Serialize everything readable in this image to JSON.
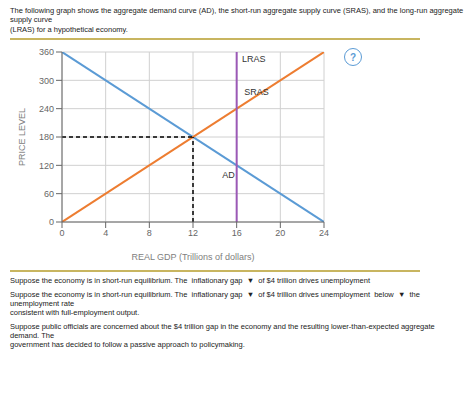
{
  "chart_data": {
    "type": "line",
    "title": "The following graph shows the aggregate demand curve (AD), the short-run aggregate supply curve (SRAS), and the long-run aggregate supply curve\n(LRAS) for a hypothetical economy.",
    "caption": [
      "Suppose the economy is in short-run equilibrium. The  inflationary gap  ▼  of $4 trillion drives unemployment",
      "Suppose the economy is in short-run equilibrium. The  inflationary gap  ▼  of $4 trillion drives unemployment  below  ▼  the unemployment rate\nconsistent with full-employment output.",
      "Suppose public officials are concerned about the $4 trillion gap in the economy and the resulting lower-than-expected aggregate demand. The\ngovernment has decided to follow a passive approach to policymaking."
    ],
    "badge": "?",
    "xlabel": "REAL GDP (Trillions of dollars)",
    "ylabel": "PRICE LEVEL",
    "xlim": [
      0,
      24
    ],
    "ylim": [
      0,
      360
    ],
    "xticks": [
      0,
      4,
      8,
      12,
      16,
      20,
      24
    ],
    "yticks": [
      0,
      60,
      120,
      180,
      240,
      300,
      360
    ],
    "grid": true,
    "series": [
      {
        "name": "AD",
        "color": "#5b9bd5",
        "x": [
          0,
          24
        ],
        "values": [
          360,
          0
        ]
      },
      {
        "name": "SRAS",
        "color": "#ed7d31",
        "x": [
          0,
          24
        ],
        "values": [
          0,
          360
        ]
      },
      {
        "name": "LRAS",
        "color": "#9b59b6",
        "x": [
          16,
          16
        ],
        "values": [
          0,
          360
        ]
      }
    ],
    "equilibrium": {
      "x": 12,
      "y": 180,
      "color": "#000000",
      "line_style": "dashed"
    },
    "annotations": [
      {
        "text": "AD",
        "x": 14.5,
        "y": 100
      },
      {
        "text": "SRAS",
        "x": 16.5,
        "y": 275
      },
      {
        "text": "LRAS",
        "x": 16.3,
        "y": 345
      }
    ]
  }
}
